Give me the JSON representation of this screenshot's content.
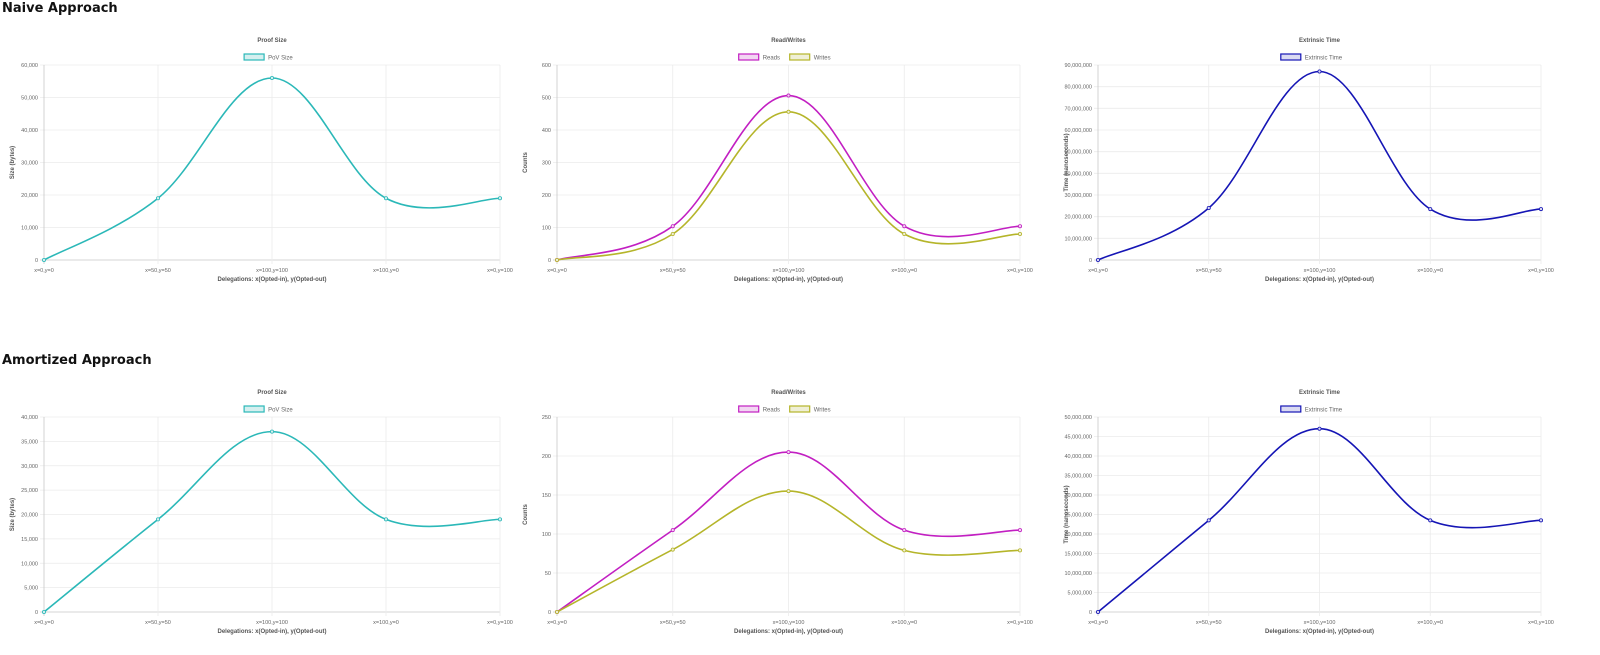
{
  "sections": [
    {
      "title": "Naive Approach"
    },
    {
      "title": "Amortized Approach"
    }
  ],
  "chart_data": [
    {
      "type": "line",
      "title": "Proof Size",
      "xlabel": "Delegations: x(Opted-in), y(Opted-out)",
      "ylabel": "Size (bytes)",
      "categories": [
        "x=0,y=0",
        "x=50,y=50",
        "x=100,y=100",
        "x=100,y=0",
        "x=0,y=100"
      ],
      "ylim": [
        0,
        60000
      ],
      "yticks": [
        0,
        10000,
        20000,
        30000,
        40000,
        50000,
        60000
      ],
      "ytick_labels": [
        "0",
        "10,000",
        "20,000",
        "30,000",
        "40,000",
        "50,000",
        "60,000"
      ],
      "legend": "top-center",
      "grid": true,
      "series": [
        {
          "name": "PoV Size",
          "values": [
            0,
            19000,
            56000,
            19000,
            19000
          ],
          "color": "#2bb8b8",
          "fill": "#d5efef"
        }
      ]
    },
    {
      "type": "line",
      "title": "Read/Writes",
      "xlabel": "Delegations: x(Opted-in), y(Opted-out)",
      "ylabel": "Counts",
      "categories": [
        "x=0,y=0",
        "x=50,y=50",
        "x=100,y=100",
        "x=100,y=0",
        "x=0,y=100"
      ],
      "ylim": [
        0,
        600
      ],
      "yticks": [
        0,
        100,
        200,
        300,
        400,
        500,
        600
      ],
      "ytick_labels": [
        "0",
        "100",
        "200",
        "300",
        "400",
        "500",
        "600"
      ],
      "legend": "top-center",
      "grid": true,
      "series": [
        {
          "name": "Reads",
          "values": [
            0,
            104,
            506,
            104,
            104
          ],
          "color": "#c21fc2",
          "fill": "#f2d6f2"
        },
        {
          "name": "Writes",
          "values": [
            0,
            80,
            456,
            80,
            80
          ],
          "color": "#b5b52a",
          "fill": "#efefd6"
        }
      ]
    },
    {
      "type": "line",
      "title": "Extrinsic Time",
      "xlabel": "Delegations: x(Opted-in), y(Opted-out)",
      "ylabel": "Time (nanoseconds)",
      "categories": [
        "x=0,y=0",
        "x=50,y=50",
        "x=100,y=100",
        "x=100,y=0",
        "x=0,y=100"
      ],
      "ylim": [
        0,
        90000000
      ],
      "yticks": [
        0,
        10000000,
        20000000,
        30000000,
        40000000,
        50000000,
        60000000,
        70000000,
        80000000,
        90000000
      ],
      "ytick_labels": [
        "0",
        "10,000,000",
        "20,000,000",
        "30,000,000",
        "40,000,000",
        "50,000,000",
        "60,000,000",
        "70,000,000",
        "80,000,000",
        "90,000,000"
      ],
      "legend": "top-center",
      "grid": true,
      "series": [
        {
          "name": "Extrinsic Time",
          "values": [
            0,
            24000000,
            87000000,
            23500000,
            23500000
          ],
          "color": "#1515b5",
          "fill": "#dadaf2"
        }
      ]
    },
    {
      "type": "line",
      "title": "Proof Size",
      "xlabel": "Delegations: x(Opted-in), y(Opted-out)",
      "ylabel": "Size (bytes)",
      "categories": [
        "x=0,y=0",
        "x=50,y=50",
        "x=100,y=100",
        "x=100,y=0",
        "x=0,y=100"
      ],
      "ylim": [
        0,
        40000
      ],
      "yticks": [
        0,
        5000,
        10000,
        15000,
        20000,
        25000,
        30000,
        35000,
        40000
      ],
      "ytick_labels": [
        "0",
        "5,000",
        "10,000",
        "15,000",
        "20,000",
        "25,000",
        "30,000",
        "35,000",
        "40,000"
      ],
      "legend": "top-center",
      "grid": true,
      "series": [
        {
          "name": "PoV Size",
          "values": [
            0,
            19000,
            37000,
            19000,
            19000
          ],
          "color": "#2bb8b8",
          "fill": "#d5efef"
        }
      ]
    },
    {
      "type": "line",
      "title": "Read/Writes",
      "xlabel": "Delegations: x(Opted-in), y(Opted-out)",
      "ylabel": "Counts",
      "categories": [
        "x=0,y=0",
        "x=50,y=50",
        "x=100,y=100",
        "x=100,y=0",
        "x=0,y=100"
      ],
      "ylim": [
        0,
        250
      ],
      "yticks": [
        0,
        50,
        100,
        150,
        200,
        250
      ],
      "ytick_labels": [
        "0",
        "50",
        "100",
        "150",
        "200",
        "250"
      ],
      "legend": "top-center",
      "grid": true,
      "series": [
        {
          "name": "Reads",
          "values": [
            0,
            105,
            205,
            105,
            105
          ],
          "color": "#c21fc2",
          "fill": "#f2d6f2"
        },
        {
          "name": "Writes",
          "values": [
            0,
            80,
            155,
            79,
            79
          ],
          "color": "#b5b52a",
          "fill": "#efefd6"
        }
      ]
    },
    {
      "type": "line",
      "title": "Extrinsic Time",
      "xlabel": "Delegations: x(Opted-in), y(Opted-out)",
      "ylabel": "Time (nanoseconds)",
      "categories": [
        "x=0,y=0",
        "x=50,y=50",
        "x=100,y=100",
        "x=100,y=0",
        "x=0,y=100"
      ],
      "ylim": [
        0,
        50000000
      ],
      "yticks": [
        0,
        5000000,
        10000000,
        15000000,
        20000000,
        25000000,
        30000000,
        35000000,
        40000000,
        45000000,
        50000000
      ],
      "ytick_labels": [
        "0",
        "5,000,000",
        "10,000,000",
        "15,000,000",
        "20,000,000",
        "25,000,000",
        "30,000,000",
        "35,000,000",
        "40,000,000",
        "45,000,000",
        "50,000,000"
      ],
      "legend": "top-center",
      "grid": true,
      "series": [
        {
          "name": "Extrinsic Time",
          "values": [
            0,
            23500000,
            47000000,
            23500000,
            23500000
          ],
          "color": "#1515b5",
          "fill": "#dadaf2"
        }
      ]
    }
  ]
}
